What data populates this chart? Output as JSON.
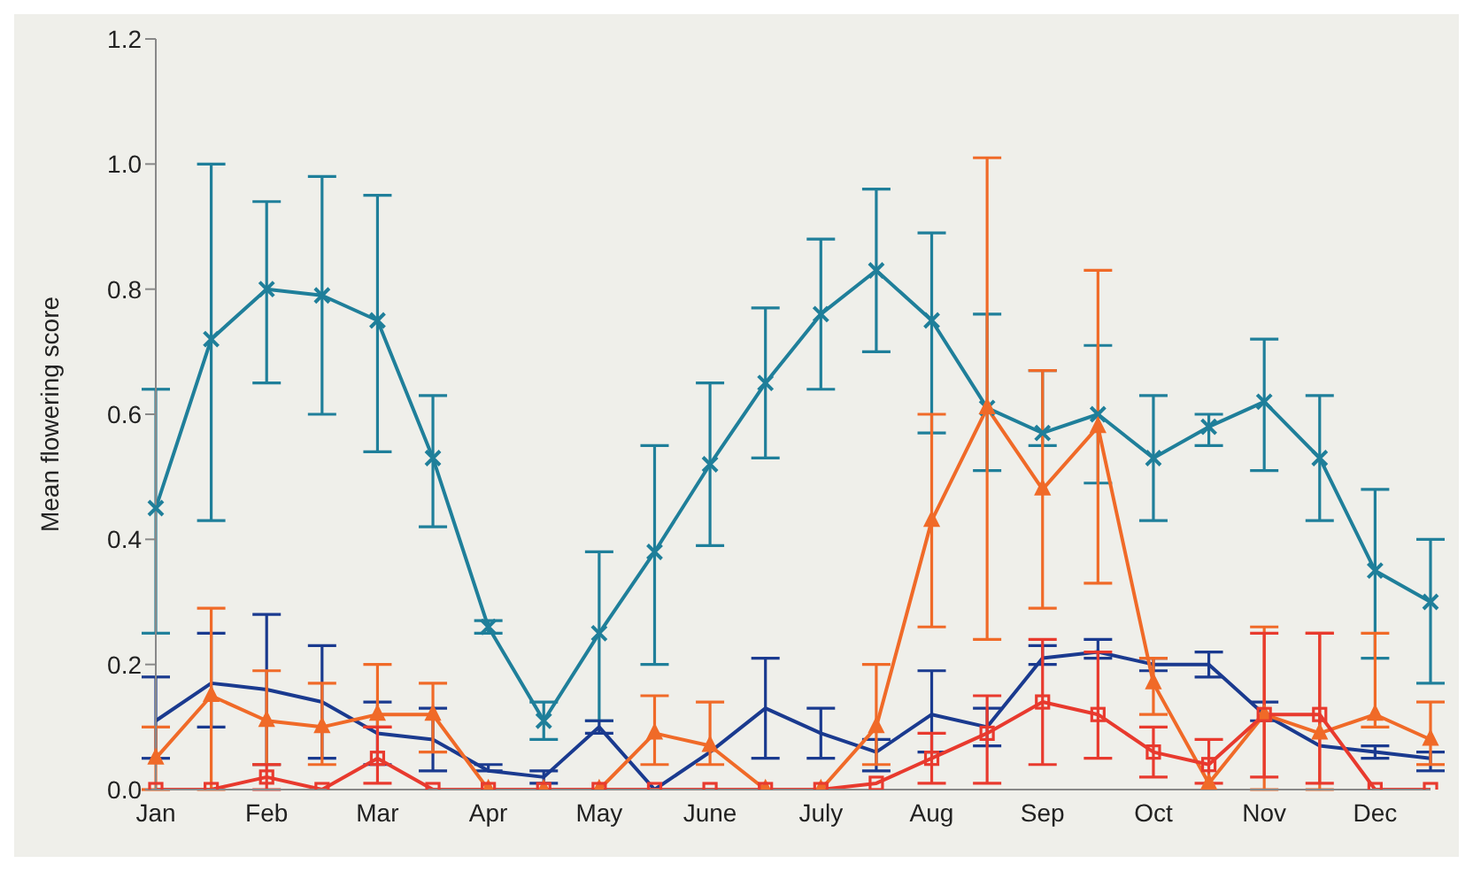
{
  "chart_data": {
    "type": "line",
    "ylabel": "Mean flowering score",
    "categories": [
      "Jan",
      null,
      "Feb",
      null,
      "Mar",
      null,
      "Apr",
      null,
      "May",
      null,
      "June",
      null,
      "July",
      null,
      "Aug",
      null,
      "Sep",
      null,
      "Oct",
      null,
      "Nov",
      null,
      "Dec",
      null
    ],
    "ylim": [
      0,
      1.2
    ],
    "yticks": [
      {
        "value": 0,
        "label": "0.0"
      },
      {
        "value": 0.2,
        "label": "0.2"
      },
      {
        "value": 0.4,
        "label": "0.4"
      },
      {
        "value": 0.6,
        "label": "0.6"
      },
      {
        "value": 0.8,
        "label": "0.8"
      },
      {
        "value": 1,
        "label": "1.0"
      },
      {
        "value": 1.2,
        "label": "1.2"
      }
    ],
    "grid": false,
    "legend": false,
    "series": [
      {
        "color": "#1f7f9a",
        "marker": "cross",
        "values": [
          0.45,
          0.72,
          0.8,
          0.79,
          0.75,
          0.53,
          0.26,
          0.11,
          0.25,
          0.38,
          0.52,
          0.65,
          0.76,
          0.83,
          0.75,
          0.61,
          0.57,
          0.6,
          0.53,
          0.58,
          0.62,
          0.53,
          0.35,
          0.3
        ],
        "errors": [
          [
            0.25,
            0.64
          ],
          [
            0.43,
            1.0
          ],
          [
            0.65,
            0.94
          ],
          [
            0.6,
            0.98
          ],
          [
            0.54,
            0.95
          ],
          [
            0.42,
            0.63
          ],
          [
            0.25,
            0.27
          ],
          [
            0.08,
            0.14
          ],
          [
            0.11,
            0.38
          ],
          [
            0.2,
            0.55
          ],
          [
            0.39,
            0.65
          ],
          [
            0.53,
            0.77
          ],
          [
            0.64,
            0.88
          ],
          [
            0.7,
            0.96
          ],
          [
            0.57,
            0.89
          ],
          [
            0.51,
            0.76
          ],
          [
            0.55,
            0.67
          ],
          [
            0.49,
            0.71
          ],
          [
            0.43,
            0.63
          ],
          [
            0.55,
            0.6
          ],
          [
            0.51,
            0.72
          ],
          [
            0.43,
            0.63
          ],
          [
            0.21,
            0.48
          ],
          [
            0.17,
            0.4
          ]
        ]
      },
      {
        "color": "#1a3a8f",
        "marker": "none",
        "values": [
          0.11,
          0.17,
          0.16,
          0.14,
          0.09,
          0.08,
          0.03,
          0.02,
          0.1,
          0.0,
          0.06,
          0.13,
          0.09,
          0.06,
          0.12,
          0.1,
          0.21,
          0.22,
          0.2,
          0.2,
          0.12,
          0.07,
          0.06,
          0.05
        ],
        "errors": [
          [
            0.05,
            0.18
          ],
          [
            0.1,
            0.25
          ],
          [
            0.04,
            0.28
          ],
          [
            0.05,
            0.23
          ],
          [
            0.04,
            0.14
          ],
          [
            0.03,
            0.13
          ],
          [
            0.03,
            0.04
          ],
          [
            0.01,
            0.03
          ],
          [
            0.09,
            0.11
          ],
          null,
          null,
          [
            0.05,
            0.21
          ],
          [
            0.05,
            0.13
          ],
          [
            0.03,
            0.08
          ],
          [
            0.06,
            0.19
          ],
          [
            0.07,
            0.13
          ],
          [
            0.2,
            0.23
          ],
          [
            0.21,
            0.24
          ],
          [
            0.19,
            0.21
          ],
          [
            0.18,
            0.22
          ],
          [
            0.11,
            0.14
          ],
          null,
          [
            0.05,
            0.07
          ],
          [
            0.03,
            0.06
          ]
        ]
      },
      {
        "color": "#f06a28",
        "marker": "triangle",
        "values": [
          0.05,
          0.15,
          0.11,
          0.1,
          0.12,
          0.12,
          0.0,
          0.0,
          0.0,
          0.09,
          0.07,
          0.0,
          0.0,
          0.1,
          0.43,
          0.61,
          0.48,
          0.58,
          0.17,
          0.01,
          0.12,
          0.09,
          0.12,
          0.08
        ],
        "errors": [
          [
            0.0,
            0.1
          ],
          [
            0.0,
            0.29
          ],
          [
            0.04,
            0.19
          ],
          [
            0.04,
            0.17
          ],
          [
            0.1,
            0.2
          ],
          [
            0.06,
            0.17
          ],
          null,
          null,
          null,
          [
            0.04,
            0.15
          ],
          [
            0.04,
            0.14
          ],
          null,
          null,
          [
            0.04,
            0.2
          ],
          [
            0.26,
            0.6
          ],
          [
            0.24,
            1.01
          ],
          [
            0.29,
            0.67
          ],
          [
            0.33,
            0.83
          ],
          [
            0.12,
            0.21
          ],
          null,
          [
            0.0,
            0.26
          ],
          [
            0.0,
            0.25
          ],
          [
            0.1,
            0.25
          ],
          [
            0.04,
            0.14
          ]
        ]
      },
      {
        "color": "#e83a2e",
        "marker": "square",
        "values": [
          0,
          0,
          0.02,
          0,
          0.05,
          0,
          0,
          0,
          0,
          0,
          0,
          0,
          0,
          0.01,
          0.05,
          0.09,
          0.14,
          0.12,
          0.06,
          0.04,
          0.12,
          0.12,
          0,
          0
        ],
        "errors": [
          null,
          null,
          [
            0,
            0.04
          ],
          null,
          [
            0.01,
            0.1
          ],
          null,
          null,
          null,
          null,
          null,
          null,
          null,
          null,
          null,
          [
            0.01,
            0.09
          ],
          [
            0.01,
            0.15
          ],
          [
            0.04,
            0.24
          ],
          [
            0.05,
            0.22
          ],
          [
            0.02,
            0.1
          ],
          [
            0.01,
            0.08
          ],
          [
            0.02,
            0.25
          ],
          [
            0.01,
            0.25
          ],
          null,
          null
        ]
      }
    ]
  }
}
